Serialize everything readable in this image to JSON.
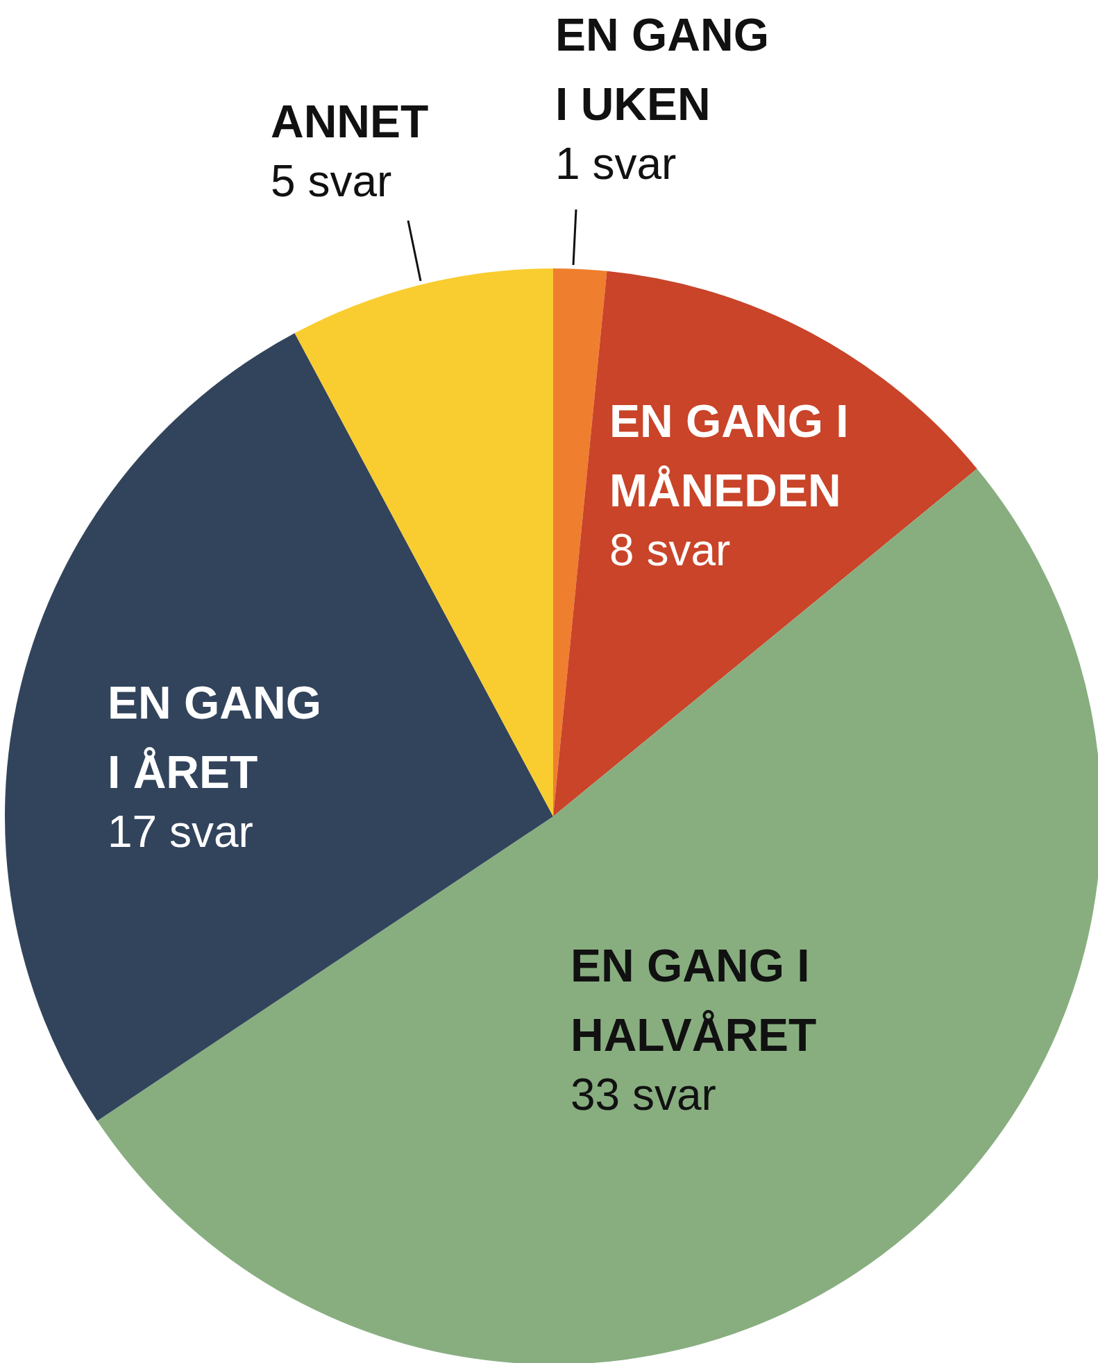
{
  "chart_data": {
    "type": "pie",
    "categories": [
      "EN GANG I UKEN",
      "EN GANG I MÅNEDEN",
      "EN GANG I HALVÅRET",
      "EN GANG I ÅRET",
      "ANNET"
    ],
    "values": [
      1,
      8,
      33,
      17,
      5
    ],
    "colors": [
      "#ef7f2e",
      "#c94429",
      "#88ae80",
      "#32445c",
      "#f9cd30"
    ],
    "value_labels": [
      "1 svar",
      "8 svar",
      "33 svar",
      "17 svar",
      "5 svar"
    ]
  }
}
